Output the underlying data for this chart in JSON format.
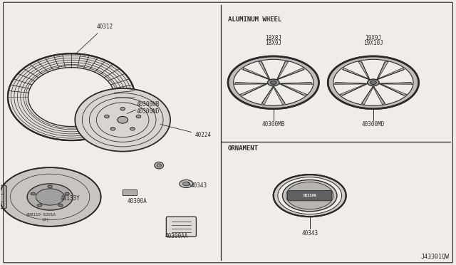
{
  "bg_color": "#f0ede8",
  "line_color": "#2a2a2a",
  "text_color": "#2a2a2a",
  "diagram_id": "J43301QW",
  "section_aluminum": "ALUMINUM WHEEL",
  "section_ornament": "ORNAMENT",
  "wheel_label_left_line1": "18X8J",
  "wheel_label_left_line2": "18X9J",
  "wheel_label_right_line1": "19X9J",
  "wheel_label_right_line2": "19X10J",
  "label_40312": "40312",
  "label_40300NB": "40300NB",
  "label_40300ND": "40300ND",
  "label_40224": "40224",
  "label_40343s": "40343",
  "label_40300A": "40300A",
  "label_44133Y": "44133Y",
  "label_ref": "@08110-8201A",
  "label_ref2": "(2)",
  "label_40300AA": "40300AA",
  "label_40300MB": "40300MB",
  "label_40300MD": "40300MD",
  "label_40343": "40343"
}
